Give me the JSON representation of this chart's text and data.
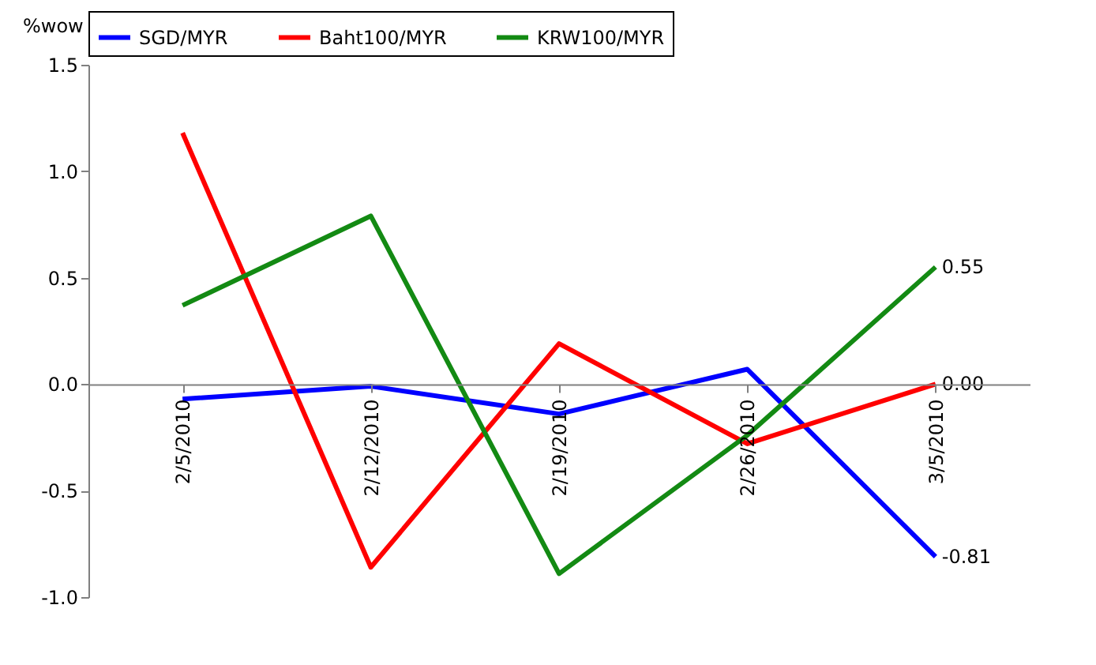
{
  "chart_data": {
    "type": "line",
    "ylabel": "%wow",
    "categories": [
      "2/5/2010",
      "2/12/2010",
      "2/19/2010",
      "2/26/2010",
      "3/5/2010"
    ],
    "ylim": [
      -1.0,
      1.5
    ],
    "yticks": [
      {
        "value": -1,
        "label": "-1.0"
      },
      {
        "value": -0.5,
        "label": "-0.5"
      },
      {
        "value": 0,
        "label": "0.0"
      },
      {
        "value": 0.5,
        "label": "0.5"
      },
      {
        "value": 1,
        "label": "1.0"
      },
      {
        "value": 1.5,
        "label": "1.5"
      }
    ],
    "grid": false,
    "legend": "top",
    "marker": "none",
    "line_style": "solid",
    "series": [
      {
        "name": "SGD/MYR",
        "color": "#0000ff",
        "values": [
          -0.07,
          -0.01,
          -0.14,
          0.07,
          -0.81
        ],
        "value_labels": [
          null,
          null,
          null,
          null,
          "-0.81"
        ]
      },
      {
        "name": "Baht100/MYR",
        "color": "#ff0000",
        "values": [
          1.18,
          -0.86,
          0.19,
          -0.28,
          0.0
        ],
        "value_labels": [
          null,
          null,
          null,
          null,
          "0.00"
        ]
      },
      {
        "name": "KRW100/MYR",
        "color": "#138a13",
        "values": [
          0.37,
          0.79,
          -0.89,
          -0.24,
          0.55
        ],
        "value_labels": [
          null,
          null,
          null,
          null,
          "0.55"
        ]
      }
    ]
  }
}
